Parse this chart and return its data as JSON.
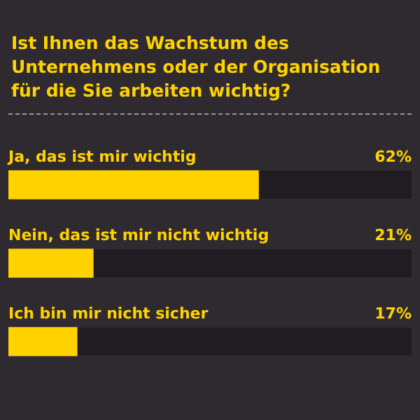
{
  "chart_data": {
    "type": "bar",
    "orientation": "horizontal",
    "title": "Ist Ihnen das Wachstum des Unternehmens oder der Organisation für die Sie arbeiten wichtig?",
    "categories": [
      "Ja, das ist mir wichtig",
      "Nein, das ist mir nicht wichtig",
      "Ich bin mir nicht sicher"
    ],
    "values": [
      62,
      21,
      17
    ],
    "color": "#ffd200",
    "value_labels": [
      "62%",
      "21%",
      "17%"
    ],
    "xlim": [
      0,
      100
    ],
    "tick_labels": false
  }
}
